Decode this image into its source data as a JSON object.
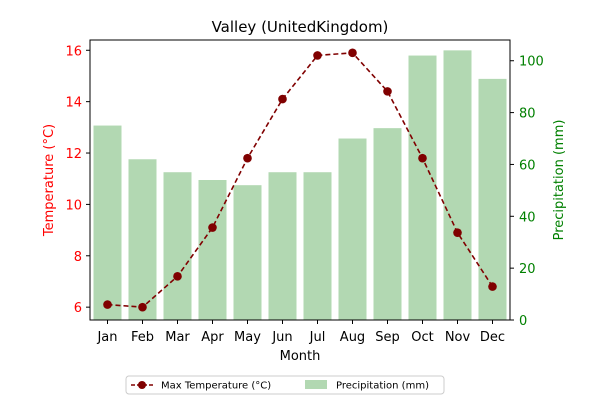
{
  "chart_data": {
    "type": "bar",
    "title": "Valley (UnitedKingdom)",
    "xlabel": "Month",
    "ylabel_left": "Temperature (°C)",
    "ylabel_right": "Precipitation (mm)",
    "categories": [
      "Jan",
      "Feb",
      "Mar",
      "Apr",
      "May",
      "Jun",
      "Jul",
      "Aug",
      "Sep",
      "Oct",
      "Nov",
      "Dec"
    ],
    "series": [
      {
        "name": "Max Temperature (°C)",
        "kind": "line",
        "axis": "left",
        "color": "#800000",
        "values": [
          6.1,
          6.0,
          7.2,
          9.1,
          11.8,
          14.1,
          15.8,
          15.9,
          14.4,
          11.8,
          8.9,
          6.8
        ]
      },
      {
        "name": "Precipitation (mm)",
        "kind": "bar",
        "axis": "right",
        "color": "#b2d8b2",
        "values": [
          75,
          62,
          57,
          54,
          52,
          57,
          57,
          70,
          74,
          102,
          104,
          93
        ]
      }
    ],
    "ylim_left": [
      5.5,
      16.4
    ],
    "yticks_left": [
      6,
      8,
      10,
      12,
      14,
      16
    ],
    "ylim_right": [
      0,
      108
    ],
    "yticks_right": [
      0,
      20,
      40,
      60,
      80,
      100
    ],
    "left_axis_color": "#ff0000",
    "right_axis_color": "#008000",
    "grid": false,
    "legend_position": "bottom-center"
  }
}
